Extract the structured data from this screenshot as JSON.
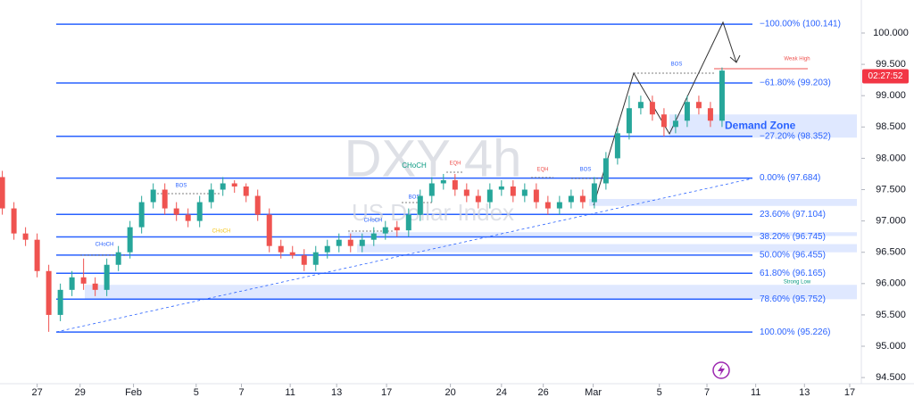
{
  "chart_data": {
    "type": "candlestick",
    "title": "DXY 4h",
    "subtitle": "US Dollar Index",
    "x": [
      -1.5,
      -1,
      -0.5,
      0,
      0.5,
      1,
      1.5,
      2,
      2.5,
      3,
      3.5,
      4,
      4.5,
      5,
      5.5,
      6,
      6.5,
      7,
      7.5,
      8,
      8.5,
      9,
      9.5,
      10,
      10.5,
      11,
      11.5,
      12,
      12.5,
      13,
      13.5,
      14,
      14.5,
      15,
      15.5,
      16,
      16.5,
      17,
      17.5,
      18,
      18.5,
      19,
      19.5,
      20,
      20.5,
      21,
      21.5,
      22,
      22.5,
      23,
      23.5,
      24,
      24.5,
      25,
      25.5,
      26,
      26.5,
      27,
      27.5,
      28,
      28.5,
      29,
      29.5
    ],
    "series": [
      {
        "up_color": "#26a69a",
        "down_color": "#ef5350",
        "open": [
          97.7,
          97.2,
          96.8,
          96.7,
          96.2,
          95.5,
          95.9,
          96.1,
          96.0,
          95.9,
          96.3,
          96.5,
          96.9,
          97.3,
          97.5,
          97.2,
          97.1,
          97.0,
          97.3,
          97.5,
          97.6,
          97.55,
          97.4,
          97.1,
          96.6,
          96.5,
          96.45,
          96.3,
          96.5,
          96.6,
          96.7,
          96.6,
          96.7,
          96.8,
          96.9,
          96.85,
          97.1,
          97.4,
          97.6,
          97.65,
          97.5,
          97.4,
          97.3,
          97.5,
          97.55,
          97.4,
          97.5,
          97.3,
          97.2,
          97.3,
          97.4,
          97.3,
          97.6,
          98.0,
          98.4,
          98.8,
          98.9,
          98.7,
          98.5,
          98.6,
          98.9,
          98.8,
          98.6
        ],
        "high": [
          97.8,
          97.3,
          96.9,
          96.8,
          96.3,
          96.0,
          96.2,
          96.4,
          96.1,
          96.4,
          96.6,
          97.0,
          97.4,
          97.6,
          97.6,
          97.3,
          97.2,
          97.4,
          97.6,
          97.7,
          97.65,
          97.6,
          97.5,
          97.2,
          96.7,
          96.6,
          96.55,
          96.6,
          96.7,
          96.8,
          96.8,
          96.8,
          96.9,
          97.0,
          97.0,
          97.2,
          97.5,
          97.7,
          97.75,
          97.75,
          97.6,
          97.5,
          97.6,
          97.65,
          97.65,
          97.6,
          97.6,
          97.4,
          97.4,
          97.5,
          97.5,
          97.7,
          98.1,
          98.5,
          99.0,
          99.0,
          99.0,
          98.8,
          98.7,
          99.0,
          99.0,
          98.9,
          99.45
        ],
        "low": [
          97.1,
          96.7,
          96.6,
          96.1,
          95.23,
          95.4,
          95.8,
          95.9,
          95.8,
          95.8,
          96.2,
          96.4,
          96.8,
          97.2,
          97.1,
          97.0,
          96.9,
          96.9,
          97.2,
          97.4,
          97.45,
          97.3,
          97.0,
          96.5,
          96.4,
          96.4,
          96.2,
          96.2,
          96.4,
          96.5,
          96.5,
          96.5,
          96.6,
          96.7,
          96.75,
          96.75,
          97.0,
          97.3,
          97.5,
          97.4,
          97.3,
          97.2,
          97.2,
          97.4,
          97.3,
          97.3,
          97.2,
          97.1,
          97.1,
          97.2,
          97.2,
          97.2,
          97.5,
          97.9,
          98.3,
          98.7,
          98.6,
          98.35,
          98.4,
          98.5,
          98.7,
          98.5,
          98.5
        ],
        "close": [
          97.2,
          96.8,
          96.7,
          96.2,
          95.5,
          95.9,
          96.1,
          96.0,
          95.9,
          96.3,
          96.5,
          96.9,
          97.3,
          97.5,
          97.2,
          97.1,
          97.0,
          97.3,
          97.5,
          97.6,
          97.55,
          97.4,
          97.1,
          96.6,
          96.5,
          96.45,
          96.3,
          96.5,
          96.6,
          96.7,
          96.6,
          96.7,
          96.8,
          96.9,
          96.85,
          97.1,
          97.4,
          97.6,
          97.65,
          97.5,
          97.4,
          97.3,
          97.5,
          97.55,
          97.4,
          97.5,
          97.3,
          97.2,
          97.3,
          97.4,
          97.3,
          97.6,
          98.0,
          98.4,
          98.8,
          98.9,
          98.7,
          98.5,
          98.6,
          98.9,
          98.8,
          98.6,
          99.4
        ]
      }
    ],
    "xlim": [
      -1.6,
      35.5
    ],
    "xticks": [
      {
        "value": 0,
        "label": "27"
      },
      {
        "value": 1.85,
        "label": "29"
      },
      {
        "value": 4.15,
        "label": "Feb"
      },
      {
        "value": 6.85,
        "label": "5"
      },
      {
        "value": 8.8,
        "label": "7"
      },
      {
        "value": 10.9,
        "label": "11"
      },
      {
        "value": 12.9,
        "label": "13"
      },
      {
        "value": 15.05,
        "label": "17"
      },
      {
        "value": 17.8,
        "label": "20"
      },
      {
        "value": 20,
        "label": "24"
      },
      {
        "value": 21.8,
        "label": "26"
      },
      {
        "value": 23.95,
        "label": "Mar"
      },
      {
        "value": 26.8,
        "label": "5"
      },
      {
        "value": 28.85,
        "label": "7"
      },
      {
        "value": 30.95,
        "label": "11"
      },
      {
        "value": 33.05,
        "label": "13"
      },
      {
        "value": 35,
        "label": "17"
      }
    ],
    "ylim": [
      94.402,
      100.527
    ],
    "yticks": [
      {
        "value": 100,
        "label": "100.000"
      },
      {
        "value": 99.5,
        "label": "99.500"
      },
      {
        "value": 99,
        "label": "99.000"
      },
      {
        "value": 98.5,
        "label": "98.500"
      },
      {
        "value": 98,
        "label": "98.000"
      },
      {
        "value": 97.5,
        "label": "97.500"
      },
      {
        "value": 97,
        "label": "97.000"
      },
      {
        "value": 96.5,
        "label": "96.500"
      },
      {
        "value": 96,
        "label": "96.000"
      },
      {
        "value": 95.5,
        "label": "95.500"
      },
      {
        "value": 95,
        "label": "95.000"
      },
      {
        "value": 94.5,
        "label": "94.500"
      }
    ],
    "fib_color": "#2962ff",
    "fib_levels": [
      {
        "value": 100.141,
        "label": "−100.00% (100.141)"
      },
      {
        "value": 99.203,
        "label": "−61.80% (99.203)"
      },
      {
        "value": 98.352,
        "label": "−27.20% (98.352)"
      },
      {
        "value": 97.684,
        "label": "0.00% (97.684)"
      },
      {
        "value": 97.104,
        "label": "23.60% (97.104)"
      },
      {
        "value": 96.745,
        "label": "38.20% (96.745)"
      },
      {
        "value": 96.455,
        "label": "50.00% (96.455)"
      },
      {
        "value": 96.165,
        "label": "61.80% (96.165)"
      },
      {
        "value": 95.752,
        "label": "78.60% (95.752)"
      },
      {
        "value": 95.226,
        "label": "100.00% (95.226)"
      }
    ],
    "zones": [
      {
        "label": "Demand Zone",
        "low": 98.33,
        "high": 98.7
      },
      {
        "low": 97.24,
        "high": 97.35
      },
      {
        "low": 96.76,
        "high": 96.82
      },
      {
        "low": 96.5,
        "high": 96.63
      },
      {
        "low": 95.75,
        "high": 95.98
      }
    ],
    "annotations": [
      "BOS",
      "CHoCH",
      "CHoCH",
      "CHoCH",
      "CHoCH",
      "EQH",
      "EQH",
      "BOS",
      "BOS",
      "BOS",
      "Weak High",
      "Strong Low"
    ],
    "countdown": {
      "value": 99.31,
      "label": "02:27:52"
    }
  }
}
